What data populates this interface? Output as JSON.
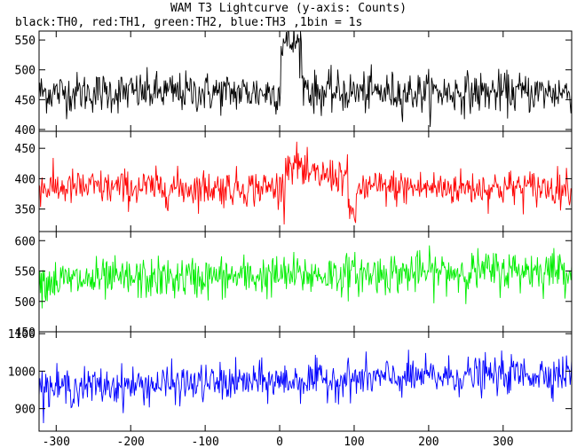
{
  "title": "WAM T3 Lightcurve (y-axis: Counts)",
  "subtitle": "black:TH0, red:TH1, green:TH2, blue:TH3 ,1bin = 1s",
  "chart_data": {
    "type": "line",
    "x_range": [
      -323,
      392
    ],
    "x_ticks": [
      -300,
      -200,
      -100,
      0,
      100,
      200,
      300
    ],
    "grid": false,
    "panels": [
      {
        "name": "TH0",
        "color": "#000000",
        "ylim": [
          397,
          565
        ],
        "y_ticks": [
          400,
          450,
          500,
          550
        ],
        "baseline": 462,
        "noise": 17,
        "features": [
          {
            "x0": 2,
            "x1": 30,
            "level": 545
          },
          {
            "x0": 30,
            "x1": 40,
            "level": 475
          }
        ]
      },
      {
        "name": "TH1",
        "color": "#ff0000",
        "ylim": [
          313,
          478
        ],
        "y_ticks": [
          350,
          400,
          450
        ],
        "baseline": 385,
        "noise": 15,
        "features": [
          {
            "x0": 8,
            "x1": 30,
            "level": 425
          },
          {
            "x0": 30,
            "x1": 92,
            "level": 405
          },
          {
            "x0": 92,
            "x1": 105,
            "level": 345
          }
        ]
      },
      {
        "name": "TH2",
        "color": "#00ee00",
        "ylim": [
          450,
          615
        ],
        "y_ticks": [
          450,
          500,
          550,
          600
        ],
        "baseline": 533,
        "noise": 17,
        "trend": 20,
        "features": []
      },
      {
        "name": "TH3",
        "color": "#0000ff",
        "ylim": [
          840,
          1105
        ],
        "y_ticks": [
          900,
          1000,
          1100
        ],
        "baseline": 955,
        "noise": 25,
        "trend": 40,
        "features": []
      }
    ]
  }
}
